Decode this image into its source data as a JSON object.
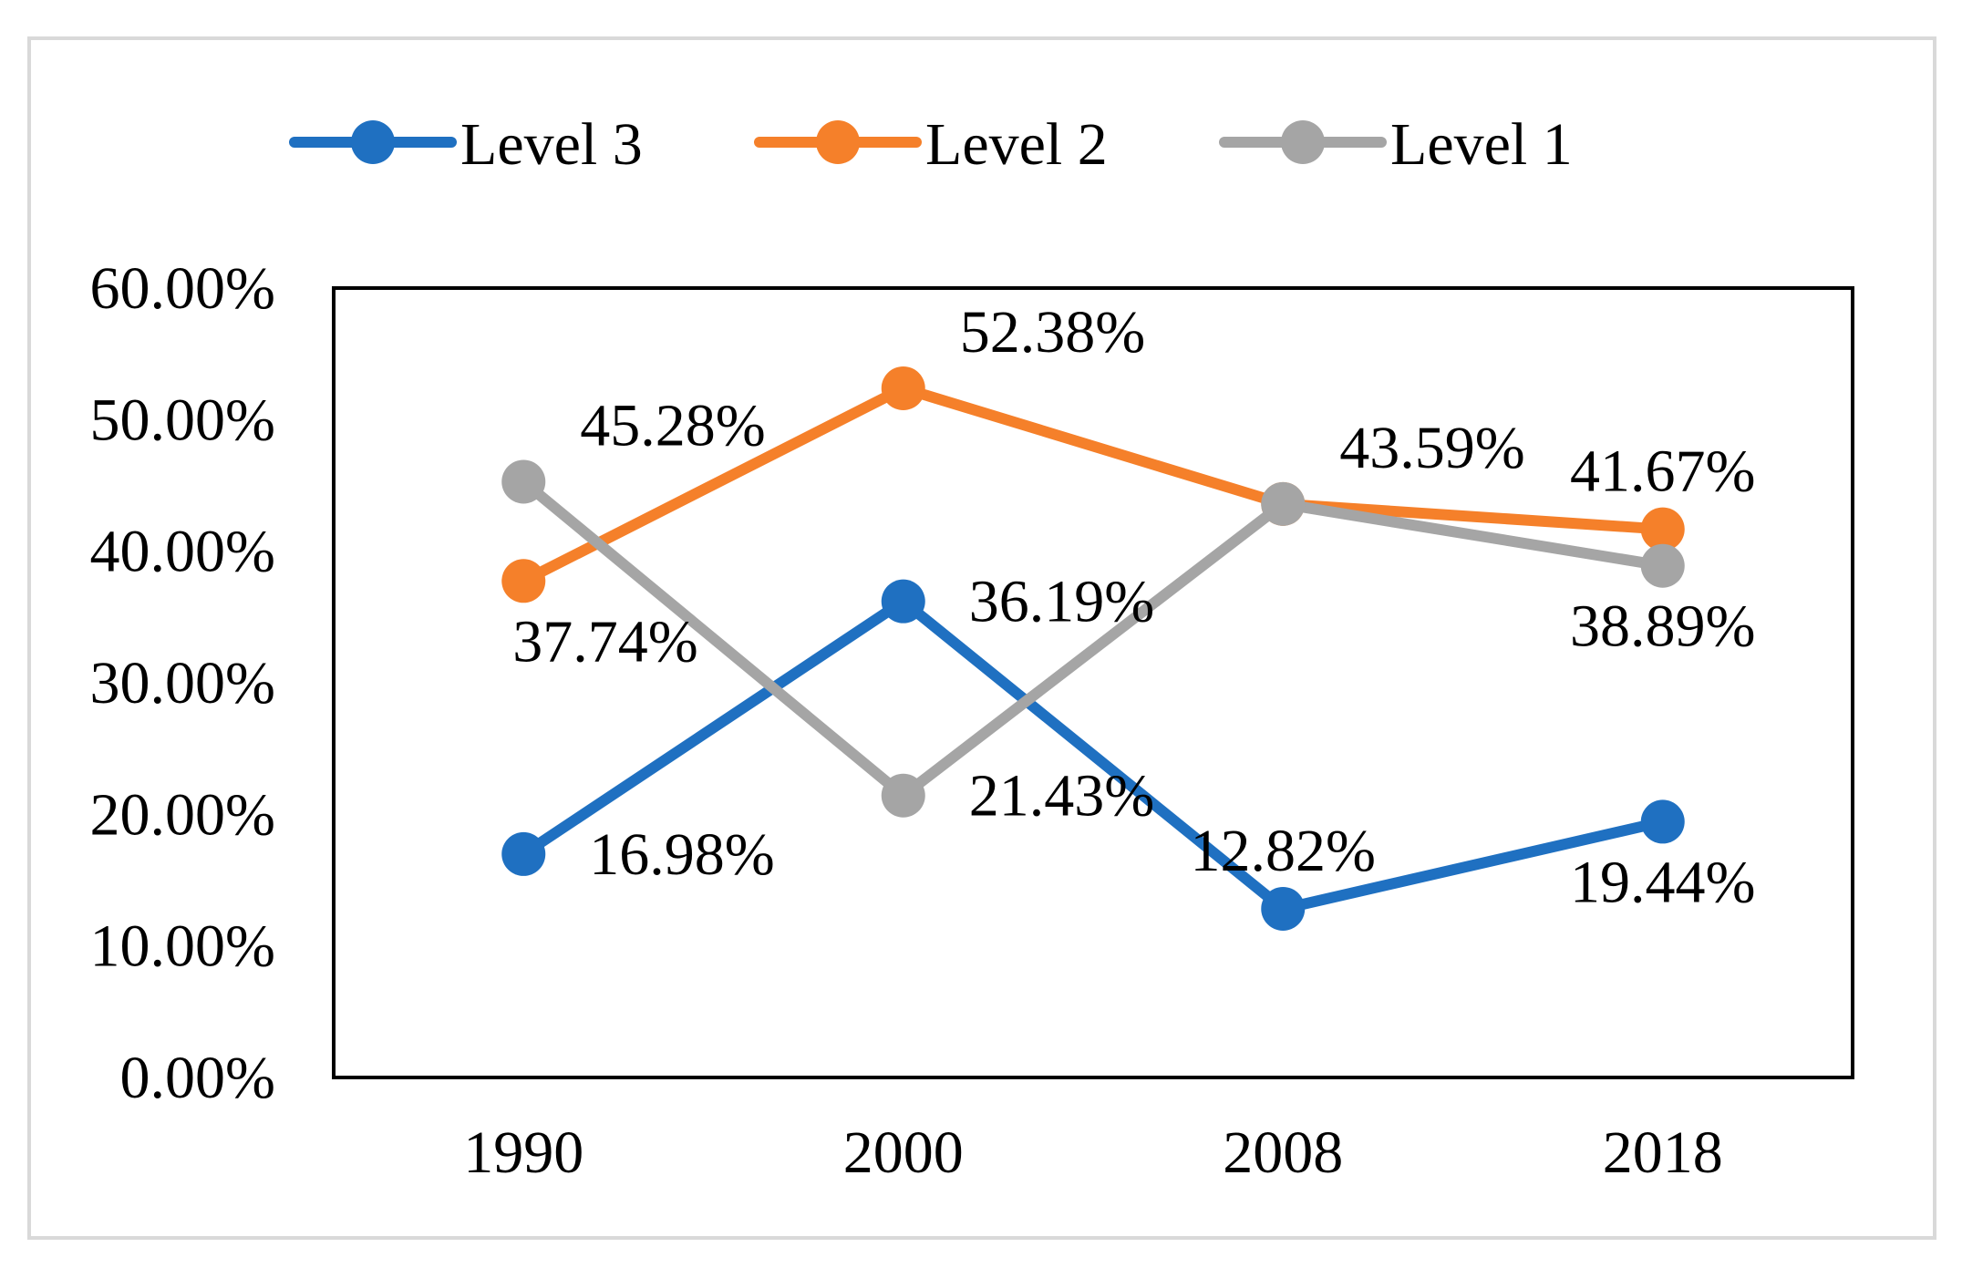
{
  "chart_data": {
    "type": "line",
    "title": "",
    "xlabel": "",
    "ylabel": "",
    "categories": [
      "1990",
      "2000",
      "2008",
      "2018"
    ],
    "ylim": [
      0,
      60
    ],
    "y_ticks": [
      {
        "value": 0,
        "label": "0.00%"
      },
      {
        "value": 10,
        "label": "10.00%"
      },
      {
        "value": 20,
        "label": "20.00%"
      },
      {
        "value": 30,
        "label": "30.00%"
      },
      {
        "value": 40,
        "label": "40.00%"
      },
      {
        "value": 50,
        "label": "50.00%"
      },
      {
        "value": 60,
        "label": "60.00%"
      }
    ],
    "grid": false,
    "legend_position": "top",
    "series": [
      {
        "name": "Level 3",
        "key": "level-3",
        "color": "#1F70C1",
        "values": [
          16.98,
          36.19,
          12.82,
          19.44
        ],
        "labels": [
          "16.98%",
          "36.19%",
          "12.82%",
          "19.44%"
        ],
        "label_positions": [
          "right",
          "right",
          "above",
          "below"
        ]
      },
      {
        "name": "Level 2",
        "key": "level-2",
        "color": "#F5802A",
        "values": [
          37.74,
          52.38,
          43.59,
          41.67
        ],
        "labels": [
          "37.74%",
          "52.38%",
          "43.59%",
          "41.67%"
        ],
        "label_positions": [
          "below-right",
          "above-right",
          "above-right",
          "above"
        ]
      },
      {
        "name": "Level 1",
        "key": "level-1",
        "color": "#A5A5A5",
        "values": [
          45.28,
          21.43,
          43.59,
          38.89
        ],
        "labels": [
          "45.28%",
          "21.43%",
          "43.59%",
          "38.89%"
        ],
        "label_positions": [
          "above-right",
          "right",
          "none",
          "below"
        ]
      }
    ]
  }
}
